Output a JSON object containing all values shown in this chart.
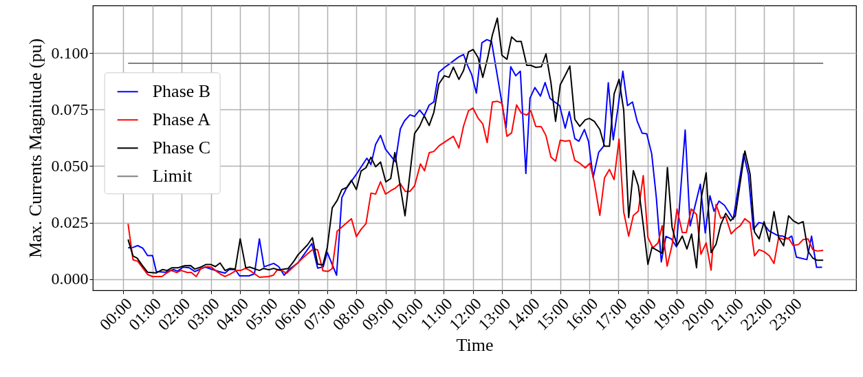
{
  "chart_data": {
    "type": "line",
    "xlabel": "Time",
    "ylabel": "Max. Currents Magnitude (pu)",
    "xlim": [
      -1.05,
      25.16
    ],
    "ylim": [
      -0.005,
      0.1211
    ],
    "xticks": [
      {
        "value": 0,
        "label": "00:00"
      },
      {
        "value": 1,
        "label": "01:00"
      },
      {
        "value": 2,
        "label": "02:00"
      },
      {
        "value": 3,
        "label": "03:00"
      },
      {
        "value": 4,
        "label": "04:00"
      },
      {
        "value": 5,
        "label": "05:00"
      },
      {
        "value": 6,
        "label": "06:00"
      },
      {
        "value": 7,
        "label": "07:00"
      },
      {
        "value": 8,
        "label": "08:00"
      },
      {
        "value": 9,
        "label": "09:00"
      },
      {
        "value": 10,
        "label": "10:00"
      },
      {
        "value": 11,
        "label": "11:00"
      },
      {
        "value": 12,
        "label": "12:00"
      },
      {
        "value": 13,
        "label": "13:00"
      },
      {
        "value": 14,
        "label": "14:00"
      },
      {
        "value": 15,
        "label": "15:00"
      },
      {
        "value": 16,
        "label": "16:00"
      },
      {
        "value": 17,
        "label": "17:00"
      },
      {
        "value": 18,
        "label": "18:00"
      },
      {
        "value": 19,
        "label": "19:00"
      },
      {
        "value": 20,
        "label": "20:00"
      },
      {
        "value": 21,
        "label": "21:00"
      },
      {
        "value": 22,
        "label": "22:00"
      },
      {
        "value": 23,
        "label": "23:00"
      }
    ],
    "yticks": [
      {
        "value": 0,
        "label": "0.000"
      },
      {
        "value": 0.025,
        "label": "0.025"
      },
      {
        "value": 0.05,
        "label": "0.050"
      },
      {
        "value": 0.075,
        "label": "0.075"
      },
      {
        "value": 0.1,
        "label": "0.100"
      }
    ],
    "grid": true,
    "legend": "left",
    "line_style": "solid",
    "marker": "none",
    "series": [
      {
        "name": "Phase B",
        "color": "#0000ff",
        "x": [
          0.16,
          0.33,
          0.49,
          0.67,
          0.83,
          1.0,
          1.13,
          1.44,
          1.72,
          1.86,
          2.05,
          2.26,
          2.45,
          2.81,
          3.28,
          3.49,
          3.63,
          3.84,
          3.99,
          4.31,
          4.5,
          4.67,
          4.83,
          5.16,
          5.33,
          5.52,
          5.68,
          6.0,
          6.47,
          6.67,
          6.86,
          7.0,
          7.32,
          7.5,
          7.65,
          8.0,
          8.36,
          8.5,
          8.66,
          8.83,
          9.0,
          9.34,
          9.51,
          9.65,
          9.84,
          10.0,
          10.17,
          10.33,
          10.5,
          10.66,
          10.83,
          11.02,
          11.18,
          11.51,
          11.68,
          11.82,
          11.96,
          12.12,
          12.31,
          12.48,
          12.64,
          13.14,
          13.3,
          13.47,
          13.63,
          13.82,
          13.96,
          14.13,
          14.32,
          14.48,
          14.65,
          14.81,
          14.98,
          15.17,
          15.31,
          15.5,
          15.64,
          15.83,
          15.97,
          16.13,
          16.32,
          16.49,
          16.65,
          16.82,
          16.98,
          17.15,
          17.31,
          17.48,
          17.64,
          17.81,
          17.97,
          18.14,
          18.3,
          18.47,
          18.63,
          18.82,
          18.99,
          19.29,
          19.46,
          19.81,
          19.98,
          20.14,
          20.28,
          20.45,
          20.64,
          20.94,
          21.3,
          21.46,
          21.63,
          21.82,
          21.98,
          22.17,
          22.48,
          22.64,
          22.81,
          22.95,
          23.11,
          23.47,
          23.63,
          23.8,
          23.99
        ],
        "values": [
          0.0138,
          0.014,
          0.0148,
          0.0136,
          0.0104,
          0.0104,
          0.0033,
          0.003,
          0.0042,
          0.0035,
          0.0053,
          0.005,
          0.0033,
          0.0053,
          0.0033,
          0.0026,
          0.0042,
          0.0042,
          0.0014,
          0.0014,
          0.0023,
          0.0178,
          0.0054,
          0.0069,
          0.0055,
          0.0017,
          0.0042,
          0.0072,
          0.0157,
          0.0048,
          0.0054,
          0.0118,
          0.0017,
          0.036,
          0.04,
          0.0464,
          0.0535,
          0.0507,
          0.0596,
          0.0636,
          0.0575,
          0.0519,
          0.0665,
          0.07,
          0.0727,
          0.072,
          0.0748,
          0.0723,
          0.077,
          0.0784,
          0.0915,
          0.0936,
          0.0951,
          0.0983,
          0.0994,
          0.0945,
          0.0905,
          0.0823,
          0.1046,
          0.106,
          0.1052,
          0.067,
          0.094,
          0.09,
          0.092,
          0.0467,
          0.08,
          0.0848,
          0.081,
          0.087,
          0.08,
          0.0784,
          0.0768,
          0.0668,
          0.0741,
          0.0622,
          0.061,
          0.0662,
          0.061,
          0.045,
          0.0561,
          0.0588,
          0.0869,
          0.0616,
          0.0756,
          0.092,
          0.0768,
          0.0784,
          0.07,
          0.0646,
          0.0643,
          0.0555,
          0.036,
          0.0076,
          0.0189,
          0.0177,
          0.0143,
          0.066,
          0.0235,
          0.042,
          0.0204,
          0.0369,
          0.03,
          0.0345,
          0.0326,
          0.0265,
          0.0554,
          0.0463,
          0.022,
          0.025,
          0.0245,
          0.0213,
          0.0192,
          0.019,
          0.0178,
          0.019,
          0.0097,
          0.0086,
          0.019,
          0.0052,
          0.0052
        ]
      },
      {
        "name": "Phase A",
        "color": "#ff0000",
        "x": [
          0.16,
          0.33,
          0.49,
          0.83,
          1.0,
          1.32,
          1.48,
          1.63,
          1.83,
          1.98,
          2.19,
          2.33,
          2.5,
          2.66,
          2.85,
          3.02,
          3.16,
          3.32,
          3.49,
          3.68,
          3.87,
          4.03,
          4.19,
          4.34,
          4.67,
          4.98,
          5.15,
          5.29,
          5.47,
          5.61,
          6.16,
          6.47,
          6.56,
          6.67,
          6.85,
          7.03,
          7.17,
          7.34,
          7.83,
          8.0,
          8.16,
          8.33,
          8.5,
          8.66,
          8.83,
          9.0,
          9.18,
          9.34,
          9.51,
          9.68,
          9.84,
          10.0,
          10.2,
          10.34,
          10.5,
          10.66,
          10.84,
          11.33,
          11.52,
          11.68,
          11.85,
          12.0,
          12.18,
          12.34,
          12.49,
          12.67,
          12.84,
          13.0,
          13.17,
          13.33,
          13.5,
          13.66,
          13.85,
          13.99,
          14.16,
          14.35,
          14.51,
          14.68,
          14.84,
          15.0,
          15.17,
          15.33,
          15.5,
          15.67,
          15.86,
          16.02,
          16.17,
          16.36,
          16.52,
          16.69,
          16.85,
          17.02,
          17.18,
          17.35,
          17.51,
          17.68,
          17.85,
          18.01,
          18.18,
          18.36,
          18.5,
          18.67,
          18.84,
          19.01,
          19.19,
          19.33,
          19.5,
          19.68,
          19.83,
          20.01,
          20.18,
          20.35,
          20.51,
          20.68,
          20.87,
          21.03,
          21.18,
          21.34,
          21.52,
          21.67,
          21.83,
          22.0,
          22.18,
          22.34,
          22.5,
          22.67,
          22.84,
          23.0,
          23.18,
          23.34,
          23.51,
          23.67,
          23.82,
          24.03
        ],
        "values": [
          0.0244,
          0.0085,
          0.0079,
          0.002,
          0.0011,
          0.0011,
          0.0026,
          0.0038,
          0.0029,
          0.0038,
          0.0029,
          0.0029,
          0.0011,
          0.0047,
          0.0054,
          0.0053,
          0.0038,
          0.0023,
          0.0011,
          0.0023,
          0.0038,
          0.0038,
          0.0047,
          0.0038,
          0.0008,
          0.0011,
          0.0017,
          0.0042,
          0.0035,
          0.0026,
          0.0093,
          0.0128,
          0.0133,
          0.0129,
          0.0037,
          0.0034,
          0.0046,
          0.0212,
          0.0267,
          0.0188,
          0.022,
          0.0245,
          0.038,
          0.0376,
          0.0431,
          0.0376,
          0.0391,
          0.0403,
          0.0422,
          0.0388,
          0.0388,
          0.0413,
          0.051,
          0.0479,
          0.0559,
          0.0565,
          0.059,
          0.0632,
          0.058,
          0.0677,
          0.0745,
          0.0757,
          0.0712,
          0.0687,
          0.0604,
          0.0784,
          0.0787,
          0.0778,
          0.0632,
          0.0647,
          0.0771,
          0.0735,
          0.0726,
          0.0745,
          0.0676,
          0.0674,
          0.0635,
          0.054,
          0.0522,
          0.0615,
          0.061,
          0.0613,
          0.0525,
          0.0513,
          0.0492,
          0.0513,
          0.0428,
          0.0282,
          0.0448,
          0.0485,
          0.044,
          0.0619,
          0.0296,
          0.019,
          0.0281,
          0.03,
          0.0458,
          0.0184,
          0.0138,
          0.016,
          0.0236,
          0.0057,
          0.015,
          0.031,
          0.0206,
          0.0206,
          0.031,
          0.0286,
          0.011,
          0.016,
          0.0039,
          0.033,
          0.027,
          0.0276,
          0.02,
          0.0222,
          0.0236,
          0.0267,
          0.0249,
          0.0103,
          0.013,
          0.0121,
          0.0103,
          0.0069,
          0.0184,
          0.0175,
          0.0181,
          0.0148,
          0.0153,
          0.0175,
          0.0178,
          0.013,
          0.0124,
          0.0127
        ]
      },
      {
        "name": "Phase C",
        "color": "#000000",
        "x": [
          0.16,
          0.33,
          0.47,
          0.65,
          0.83,
          1.13,
          1.34,
          1.5,
          1.67,
          1.88,
          2.1,
          2.3,
          2.45,
          2.66,
          2.83,
          3.01,
          3.16,
          3.32,
          3.49,
          3.66,
          3.84,
          4.01,
          4.2,
          4.34,
          4.67,
          4.81,
          5.0,
          5.16,
          5.33,
          5.66,
          5.85,
          6.0,
          6.32,
          6.49,
          6.67,
          6.85,
          7.0,
          7.17,
          7.34,
          7.5,
          7.67,
          7.83,
          8.0,
          8.16,
          8.33,
          8.5,
          8.66,
          8.83,
          9.01,
          9.18,
          9.32,
          9.67,
          10.0,
          10.17,
          10.33,
          10.5,
          10.66,
          10.83,
          11.02,
          11.18,
          11.33,
          11.52,
          11.68,
          11.85,
          12.01,
          12.18,
          12.34,
          12.51,
          12.67,
          12.84,
          13.0,
          13.17,
          13.33,
          13.5,
          13.66,
          13.85,
          13.99,
          14.16,
          14.35,
          14.51,
          14.68,
          14.84,
          15.0,
          15.17,
          15.33,
          15.5,
          15.67,
          15.86,
          16.0,
          16.17,
          16.36,
          16.52,
          16.69,
          16.85,
          17.02,
          17.18,
          17.35,
          17.51,
          17.68,
          17.85,
          18.01,
          18.15,
          18.33,
          18.5,
          18.68,
          18.84,
          19.01,
          19.19,
          19.35,
          19.51,
          19.68,
          19.85,
          20.01,
          20.18,
          20.35,
          20.51,
          20.68,
          20.85,
          21.01,
          21.34,
          21.52,
          21.67,
          21.83,
          22.0,
          22.18,
          22.34,
          22.5,
          22.67,
          22.84,
          23.0,
          23.18,
          23.34,
          23.51,
          23.67,
          23.82,
          24.03
        ],
        "values": [
          0.0175,
          0.0102,
          0.0093,
          0.006,
          0.003,
          0.0027,
          0.0042,
          0.0038,
          0.005,
          0.005,
          0.0059,
          0.006,
          0.0044,
          0.0053,
          0.0064,
          0.0064,
          0.0055,
          0.0071,
          0.0038,
          0.0047,
          0.0044,
          0.0178,
          0.005,
          0.0053,
          0.0038,
          0.0047,
          0.0041,
          0.0047,
          0.004,
          0.0047,
          0.0078,
          0.0108,
          0.0151,
          0.0183,
          0.0066,
          0.0063,
          0.0139,
          0.0315,
          0.0348,
          0.0396,
          0.0406,
          0.0437,
          0.0396,
          0.0478,
          0.0493,
          0.0539,
          0.0497,
          0.0518,
          0.043,
          0.0445,
          0.056,
          0.028,
          0.0645,
          0.0676,
          0.0723,
          0.068,
          0.0738,
          0.0863,
          0.09,
          0.0893,
          0.0938,
          0.0884,
          0.0923,
          0.1006,
          0.1016,
          0.098,
          0.0893,
          0.098,
          0.1081,
          0.1155,
          0.099,
          0.0973,
          0.1072,
          0.1052,
          0.1052,
          0.0946,
          0.0946,
          0.0937,
          0.094,
          0.0997,
          0.087,
          0.0698,
          0.086,
          0.0902,
          0.0943,
          0.0707,
          0.0676,
          0.0705,
          0.0711,
          0.0698,
          0.0662,
          0.0588,
          0.0588,
          0.082,
          0.0884,
          0.0747,
          0.0272,
          0.048,
          0.0413,
          0.024,
          0.0065,
          0.014,
          0.0127,
          0.0114,
          0.0494,
          0.0229,
          0.0148,
          0.019,
          0.0133,
          0.0199,
          0.005,
          0.0365,
          0.047,
          0.0117,
          0.0154,
          0.024,
          0.0291,
          0.0258,
          0.0279,
          0.0567,
          0.0464,
          0.0208,
          0.0178,
          0.0254,
          0.0166,
          0.0299,
          0.0184,
          0.0147,
          0.028,
          0.0258,
          0.0245,
          0.0254,
          0.0123,
          0.0093,
          0.0083,
          0.0083
        ]
      },
      {
        "name": "Limit",
        "color": "#808080",
        "x": [
          0.16,
          24.03
        ],
        "values": [
          0.0955,
          0.0955
        ]
      }
    ]
  }
}
